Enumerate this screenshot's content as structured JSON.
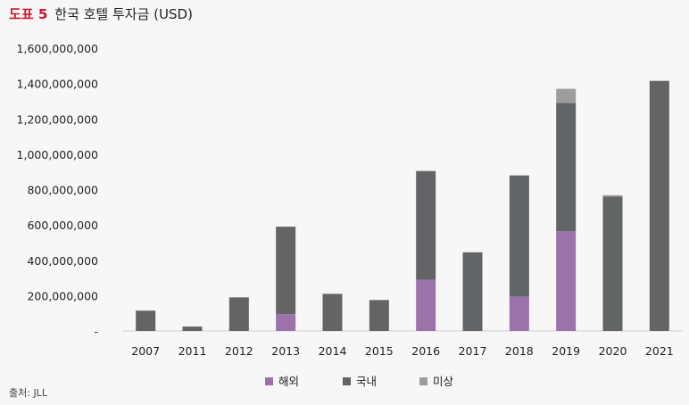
{
  "figure": {
    "number": "도표 5",
    "title": "한국 호텔 투자금 (USD)",
    "source": "출처: JLL"
  },
  "chart_data": {
    "type": "bar",
    "stacked": true,
    "categories": [
      "2007",
      "2011",
      "2012",
      "2013",
      "2014",
      "2015",
      "2016",
      "2017",
      "2018",
      "2019",
      "2020",
      "2021"
    ],
    "series": [
      {
        "name": "해외",
        "color": "#9b72aa",
        "values": [
          0,
          0,
          0,
          95000000,
          0,
          0,
          290000000,
          0,
          195000000,
          565000000,
          0,
          0
        ]
      },
      {
        "name": "국내",
        "color": "#636466",
        "values": [
          115000000,
          25000000,
          190000000,
          495000000,
          210000000,
          175000000,
          615000000,
          445000000,
          685000000,
          725000000,
          760000000,
          1415000000
        ]
      },
      {
        "name": "미상",
        "color": "#9d9d9d",
        "values": [
          0,
          0,
          0,
          0,
          0,
          0,
          0,
          0,
          0,
          80000000,
          8000000,
          0
        ]
      }
    ],
    "y_ticks": [
      "-",
      "200,000,000",
      "400,000,000",
      "600,000,000",
      "800,000,000",
      "1,000,000,000",
      "1,200,000,000",
      "1,400,000,000",
      "1,600,000,000"
    ],
    "ylim": [
      0,
      1600000000
    ],
    "grid": false,
    "legend_position": "bottom"
  }
}
